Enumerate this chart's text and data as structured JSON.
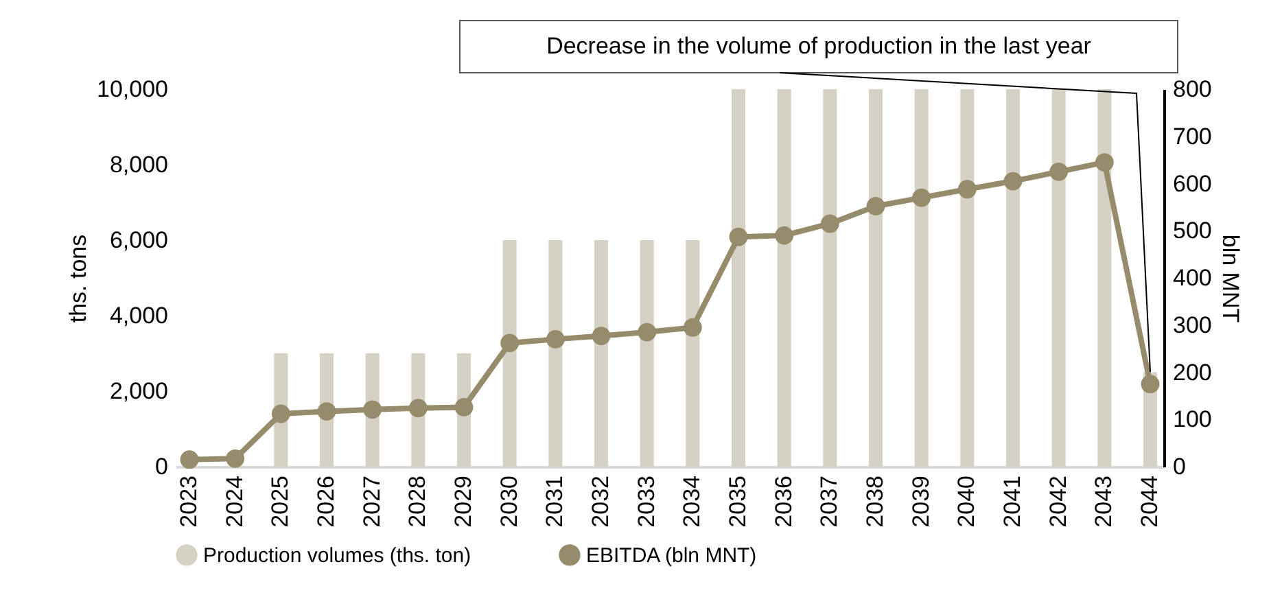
{
  "chart_data": {
    "type": "bar",
    "categories": [
      "2023",
      "2024",
      "2025",
      "2026",
      "2027",
      "2028",
      "2029",
      "2030",
      "2031",
      "2032",
      "2033",
      "2034",
      "2035",
      "2036",
      "2037",
      "2038",
      "2039",
      "2040",
      "2041",
      "2042",
      "2043",
      "2044"
    ],
    "series": [
      {
        "name": "Production volumes (ths. ton)",
        "color": "#d5d1c4",
        "values": [
          0,
          0,
          3000,
          3000,
          3000,
          3000,
          3000,
          6000,
          6000,
          6000,
          6000,
          6000,
          10000,
          10000,
          10000,
          10000,
          10000,
          10000,
          10000,
          10000,
          10000,
          2500
        ]
      },
      {
        "name": "EBITDA (bln MNT)",
        "type": "line",
        "axis": "y2",
        "color": "#968b6a",
        "marker": "circle",
        "values": [
          15,
          17,
          112,
          117,
          121,
          124,
          126,
          262,
          270,
          277,
          285,
          295,
          487,
          490,
          515,
          552,
          570,
          588,
          605,
          625,
          645,
          175
        ]
      }
    ],
    "ylabel": "ths. tons",
    "y2label": "bln MNT",
    "ylim": [
      0,
      10000
    ],
    "yticks": [
      0,
      {
        "value": 2000,
        "label": "2,000"
      },
      {
        "value": 4000,
        "label": "4,000"
      },
      {
        "value": 6000,
        "label": "6,000"
      },
      {
        "value": 8000,
        "label": "8,000"
      },
      {
        "value": 10000,
        "label": "10,000"
      }
    ],
    "y2lim": [
      0,
      800
    ],
    "y2ticks": [
      0,
      100,
      200,
      300,
      400,
      500,
      600,
      700,
      800
    ],
    "annotations": [
      "Decrease in the volume of production in the last year"
    ],
    "legend": "bottom",
    "grid": false
  }
}
